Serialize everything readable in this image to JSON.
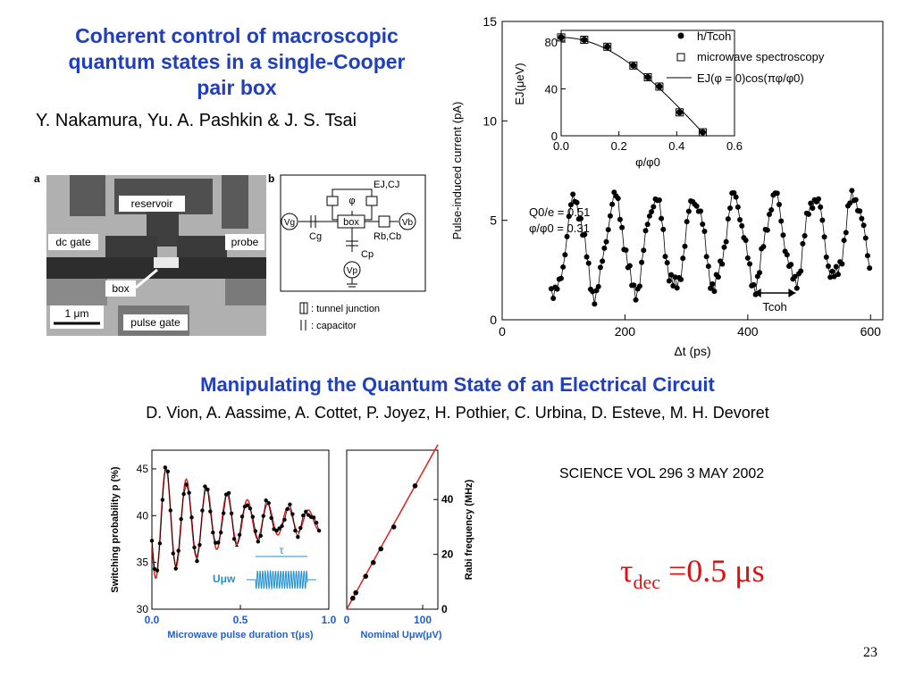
{
  "slide": {
    "title1_line1": "Coherent control of macroscopic",
    "title1_line2": "quantum states in a single-Cooper",
    "title1_line3": "pair box",
    "authors1": "Y. Nakamura, Yu. A. Pashkin & J. S. Tsai",
    "title2": "Manipulating the Quantum State of an Electrical Circuit",
    "authors2": "D. Vion, A. Aassime, A. Cottet, P. Joyez, H. Pothier, C. Urbina, D. Esteve, M. H. Devoret",
    "citation": "SCIENCE VOL 296 3 MAY 2002",
    "tau_formula": {
      "tau": "τ",
      "sub": "dec",
      "rest": " =0.5 μs"
    },
    "page_number": "23"
  },
  "micrograph": {
    "panel_label": "a",
    "labels": {
      "reservoir": "reservoir",
      "dc_gate": "dc gate",
      "probe": "probe",
      "box": "box",
      "pulse_gate": "pulse gate",
      "scale": "1 μm"
    }
  },
  "circuit": {
    "panel_label": "b",
    "labels": {
      "EJCJ": "EJ,CJ",
      "phi": "φ",
      "Vg": "Vg",
      "Cg": "Cg",
      "box": "box",
      "RbCb": "Rb,Cb",
      "Vb": "Vb",
      "Cp": "Cp",
      "Vp": "Vp"
    },
    "legend": {
      "tunnel": ": tunnel junction",
      "capacitor": ": capacitor"
    }
  },
  "chart_data": [
    {
      "type": "scatter",
      "id": "nakamura-main",
      "ylabel": "Pulse-induced current (pA)",
      "xlabel": "Δt (ps)",
      "xlim": [
        0,
        620
      ],
      "ylim": [
        0,
        15
      ],
      "xticks": [
        0,
        200,
        400,
        600
      ],
      "yticks": [
        0,
        5,
        10,
        15
      ],
      "annotation_line1": "Q0/e = 0.51",
      "annotation_line2": "φ/φ0 = 0.31",
      "period_label": "Tcoh",
      "oscillation": {
        "x_start": 80,
        "x_end": 600,
        "period": 65,
        "mean": 3.6,
        "amplitude": 2.4,
        "phase_x": 90
      }
    },
    {
      "type": "scatter",
      "id": "nakamura-inset",
      "ylabel": "EJ(μeV)",
      "xlabel": "φ/φ0",
      "xlim": [
        0,
        0.6
      ],
      "ylim": [
        0,
        90
      ],
      "xticks": [
        0.0,
        0.2,
        0.4,
        0.6
      ],
      "yticks": [
        0,
        40,
        80
      ],
      "legend": [
        "h/Tcoh",
        "microwave spectroscopy",
        "EJ(φ = 0)cos(πφ/φ0)"
      ],
      "series": [
        {
          "name": "h/Tcoh",
          "x": [
            0.0,
            0.08,
            0.16,
            0.25,
            0.3,
            0.34,
            0.41,
            0.49
          ],
          "y": [
            84,
            82,
            76,
            60,
            50,
            42,
            20,
            3
          ]
        },
        {
          "name": "microwave spectroscopy",
          "x": [
            0.0,
            0.08,
            0.16,
            0.25,
            0.3,
            0.34,
            0.41,
            0.49
          ],
          "y": [
            84,
            82,
            76,
            60,
            50,
            42,
            20,
            3
          ]
        }
      ]
    },
    {
      "type": "line",
      "id": "vion-rabi",
      "ylabel": "Switching probability p (%)",
      "xlabel": "Microwave pulse duration τ(μs)",
      "xlim": [
        0,
        1.0
      ],
      "ylim": [
        30,
        47
      ],
      "xticks": [
        0.0,
        0.5,
        1.0
      ],
      "yticks": [
        30,
        35,
        40,
        45
      ],
      "inset_labels": {
        "tau": "τ",
        "U": "Uμw"
      },
      "oscillation": {
        "period": 0.115,
        "mean": 39.5,
        "amplitude0": 6.5,
        "decay_tau": 0.5
      }
    },
    {
      "type": "scatter",
      "id": "vion-freq",
      "ylabel": "Rabi frequency (MHz)",
      "xlabel": "Nominal Uμw(μV)",
      "xlim": [
        0,
        120
      ],
      "ylim": [
        0,
        58
      ],
      "xticks": [
        0,
        100
      ],
      "yticks": [
        0,
        20,
        40
      ],
      "x": [
        8,
        12,
        25,
        35,
        45,
        62,
        90
      ],
      "y": [
        4,
        6,
        12,
        17,
        22,
        30,
        45
      ]
    }
  ]
}
